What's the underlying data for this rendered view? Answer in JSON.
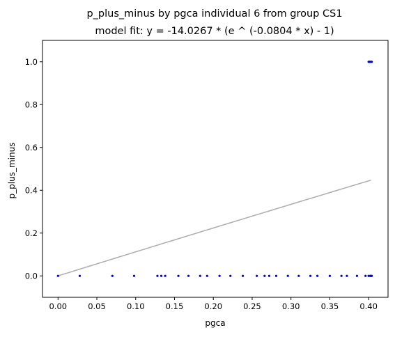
{
  "chart_data": {
    "type": "scatter",
    "title": "p_plus_minus by pgca individual 6 from group CS1",
    "subtitle": "model fit: y = -14.0267 * (e ^ (-0.0804 * x) - 1)",
    "xlabel": "pgca",
    "ylabel": "p_plus_minus",
    "xlim": [
      -0.02,
      0.425
    ],
    "ylim": [
      -0.1,
      1.1
    ],
    "x_ticks": [
      0.0,
      0.05,
      0.1,
      0.15,
      0.2,
      0.25,
      0.3,
      0.35,
      0.4
    ],
    "x_tick_labels": [
      "0.00",
      "0.05",
      "0.10",
      "0.15",
      "0.20",
      "0.25",
      "0.30",
      "0.35",
      "0.40"
    ],
    "y_ticks": [
      0.0,
      0.2,
      0.4,
      0.6,
      0.8,
      1.0
    ],
    "y_tick_labels": [
      "0.0",
      "0.2",
      "0.4",
      "0.6",
      "0.8",
      "1.0"
    ],
    "grid": false,
    "colors": {
      "points": "#0000ff",
      "fit_line": "#b0b0b0",
      "axes": "#000000"
    },
    "points": {
      "x": [
        0.0,
        0.028,
        0.07,
        0.098,
        0.128,
        0.133,
        0.138,
        0.155,
        0.168,
        0.183,
        0.192,
        0.208,
        0.222,
        0.238,
        0.256,
        0.266,
        0.272,
        0.281,
        0.296,
        0.31,
        0.325,
        0.334,
        0.35,
        0.365,
        0.372,
        0.385,
        0.396,
        0.4,
        0.402,
        0.403,
        0.404,
        0.4,
        0.401,
        0.402,
        0.403,
        0.404
      ],
      "y": [
        0,
        0,
        0,
        0,
        0,
        0,
        0,
        0,
        0,
        0,
        0,
        0,
        0,
        0,
        0,
        0,
        0,
        0,
        0,
        0,
        0,
        0,
        0,
        0,
        0,
        0,
        0,
        0,
        0,
        0,
        0,
        1,
        1,
        1,
        1,
        1
      ]
    },
    "fit": {
      "a": -14.0267,
      "b": -0.0804,
      "x_range": [
        0.0,
        0.403
      ]
    }
  }
}
